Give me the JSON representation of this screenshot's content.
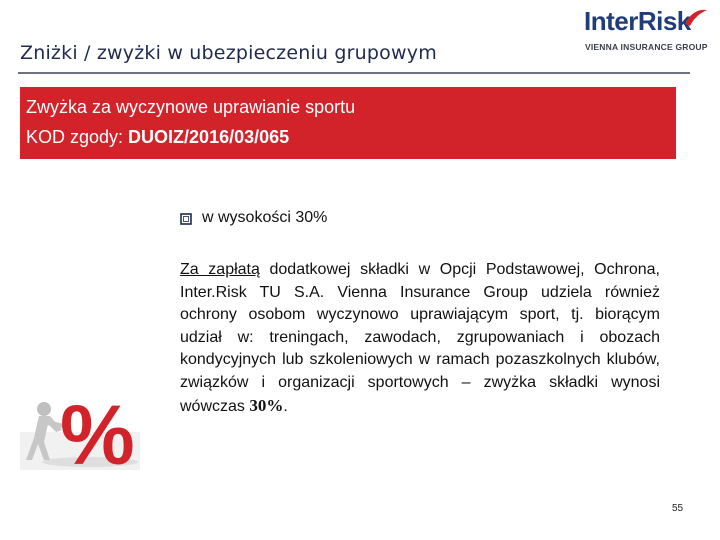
{
  "header": {
    "title": "Zniżki / zwyżki w ubezpieczeniu grupowym"
  },
  "logo": {
    "brand": "InterRisk",
    "tagline": "VIENNA INSURANCE GROUP",
    "colors": {
      "brand": "#1f3d7a",
      "accent": "#d2232a"
    }
  },
  "banner": {
    "line1": "Zwyżka za wyczynowe uprawianie sportu",
    "code_prefix": "KOD zgody: ",
    "code": "DUOIZ/2016/03/065",
    "color": "#d2232a"
  },
  "content": {
    "bullet_icon": "checkbox-square-icon",
    "bullet_text": "w wysokości 30%",
    "para_underlined": "Za zapłatą",
    "para_body": " dodatkowej składki w Opcji Podstawowej, Ochrona, Inter.Risk TU S.A. Vienna Insurance Group udziela również ochrony osobom wyczynowo uprawiającym sport, tj. biorącym udział w: treningach, zawodach, zgrupowaniach i obozach kondycyjnych lub szkoleniowych w ramach pozaszkolnych klubów, związków i organizacji sportowych – zwyżka składki wynosi wówczas  ",
    "para_percent": "30%",
    "para_end": "."
  },
  "illustration": {
    "icon": "figure-pushing-percent-icon",
    "glyph": "%"
  },
  "footer": {
    "page_number": "55"
  }
}
